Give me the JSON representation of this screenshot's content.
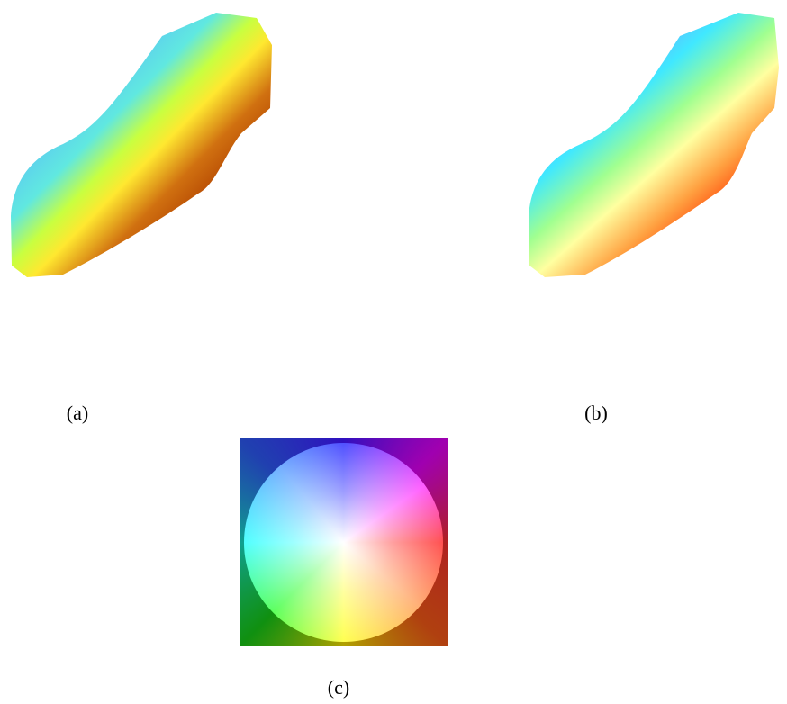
{
  "figure": {
    "subfigures": [
      {
        "label": "(a)"
      },
      {
        "label": "(b)"
      },
      {
        "label": "(c)"
      }
    ]
  }
}
